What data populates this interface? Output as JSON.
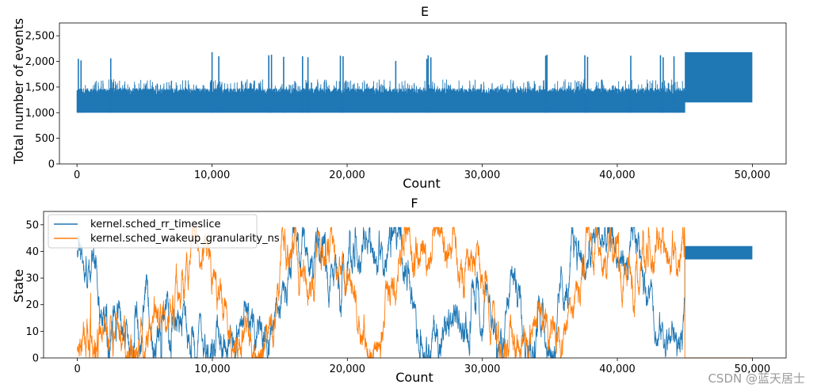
{
  "chart_data": [
    {
      "type": "line",
      "title": "E",
      "xlabel": "Count",
      "ylabel": "Total number of events",
      "xlim": [
        -1300,
        52500
      ],
      "ylim": [
        0,
        2750
      ],
      "xticks": [
        0,
        10000,
        20000,
        30000,
        40000,
        50000
      ],
      "xtick_labels": [
        "0",
        "10,000",
        "20,000",
        "30,000",
        "40,000",
        "50,000"
      ],
      "yticks": [
        0,
        500,
        1000,
        1500,
        2000,
        2500
      ],
      "ytick_labels": [
        "0",
        "500",
        "1,000",
        "1,500",
        "2,000",
        "2,500"
      ],
      "grid": false,
      "series": [
        {
          "color": "#1f77b4",
          "segments": [
            {
              "x_start": 0,
              "x_end": 45000,
              "low": 1000,
              "typical_high": 1400,
              "envelope_high": 1650
            },
            {
              "x_start": 45000,
              "x_end": 50000,
              "low": 1200,
              "typical_high": 2180,
              "envelope_high": 2180
            }
          ],
          "spikes": [
            {
              "x": 100,
              "y": 2050
            },
            {
              "x": 300,
              "y": 2020
            },
            {
              "x": 2500,
              "y": 2060
            },
            {
              "x": 10000,
              "y": 2180
            },
            {
              "x": 10500,
              "y": 2100
            },
            {
              "x": 14200,
              "y": 2120
            },
            {
              "x": 14400,
              "y": 2130
            },
            {
              "x": 15300,
              "y": 2090
            },
            {
              "x": 16700,
              "y": 2100
            },
            {
              "x": 17100,
              "y": 2080
            },
            {
              "x": 19500,
              "y": 2110
            },
            {
              "x": 19700,
              "y": 2100
            },
            {
              "x": 23600,
              "y": 2010
            },
            {
              "x": 25900,
              "y": 2050
            },
            {
              "x": 26000,
              "y": 2120
            },
            {
              "x": 26200,
              "y": 2080
            },
            {
              "x": 34700,
              "y": 2110
            },
            {
              "x": 34800,
              "y": 2130
            },
            {
              "x": 37600,
              "y": 2120
            },
            {
              "x": 37800,
              "y": 2090
            },
            {
              "x": 41000,
              "y": 2110
            },
            {
              "x": 43200,
              "y": 2120
            },
            {
              "x": 43400,
              "y": 2080
            },
            {
              "x": 44200,
              "y": 2100
            }
          ]
        }
      ]
    },
    {
      "type": "line",
      "title": "F",
      "xlabel": "Count",
      "ylabel": "State",
      "xlim": [
        -2500,
        52500
      ],
      "ylim": [
        0,
        55
      ],
      "xticks": [
        0,
        10000,
        20000,
        30000,
        40000,
        50000
      ],
      "xtick_labels": [
        "0",
        "10,000",
        "20,000",
        "30,000",
        "40,000",
        "50,000"
      ],
      "yticks": [
        0,
        10,
        20,
        30,
        40,
        50
      ],
      "ytick_labels": [
        "0",
        "10",
        "20",
        "30",
        "40",
        "50"
      ],
      "grid": false,
      "legend": "top-left",
      "series": [
        {
          "name": "kernel.sched_rr_timeslice",
          "color": "#1f77b4",
          "behavior": "random walk between 0 and 49 until x=45000, then oscillates between 37 and 42",
          "range": [
            0,
            49
          ],
          "tail": {
            "x_start": 45000,
            "x_end": 50000,
            "low": 37,
            "high": 42
          }
        },
        {
          "name": "kernel.sched_wakeup_granularity_ns",
          "color": "#ff7f0e",
          "behavior": "random walk between 0 and 49 until x=45000, then constant 0",
          "range": [
            0,
            49
          ],
          "tail": {
            "x_start": 45000,
            "x_end": 50000,
            "value": 0
          }
        }
      ]
    }
  ],
  "watermark": "CSDN @蓝天居士"
}
